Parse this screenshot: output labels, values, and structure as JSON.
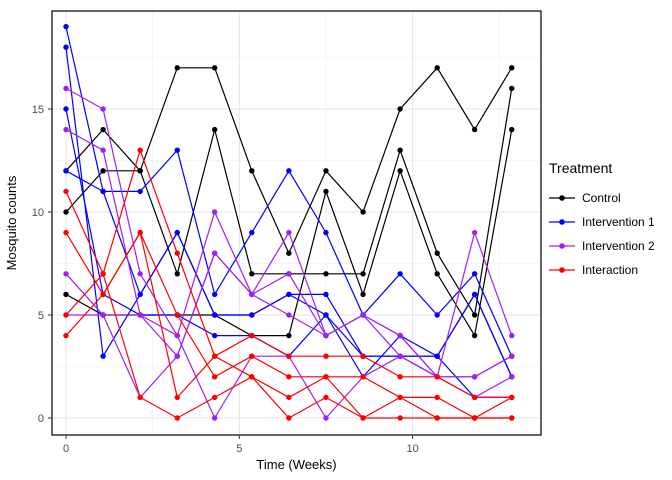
{
  "chart_data": {
    "type": "line",
    "title": "",
    "xlabel": "Time (Weeks)",
    "ylabel": "Mosquito counts",
    "x_ticks": [
      0,
      5,
      10
    ],
    "y_ticks": [
      0,
      5,
      10,
      15
    ],
    "x_minor": [
      2.5,
      7.5,
      12.5
    ],
    "y_minor": [
      2.5,
      7.5,
      12.5,
      17.5
    ],
    "xlim": [
      -0.41,
      13.71
    ],
    "ylim": [
      -0.83,
      19.76
    ],
    "grid": "on",
    "legend": {
      "title": "Treatment",
      "position": "right"
    },
    "time_weeks": [
      0,
      1.07,
      2.14,
      3.21,
      4.29,
      5.36,
      6.43,
      7.5,
      8.57,
      9.64,
      10.71,
      11.79,
      12.86
    ],
    "treatments": [
      {
        "name": "Control",
        "color": "#000000",
        "lines": [
          [
            10,
            12,
            12,
            17,
            17,
            12,
            8,
            12,
            10,
            15,
            17,
            14,
            17
          ],
          [
            12,
            14,
            12,
            7,
            14,
            7,
            7,
            7,
            7,
            13,
            8,
            5,
            16
          ],
          [
            6,
            5,
            5,
            5,
            5,
            4,
            4,
            11,
            6,
            12,
            7,
            4,
            14
          ]
        ]
      },
      {
        "name": "Intervention 1",
        "color": "#0000FF",
        "lines": [
          [
            19,
            11,
            11,
            13,
            6,
            9,
            12,
            9,
            5,
            7,
            5,
            7,
            3
          ],
          [
            18,
            3,
            6,
            9,
            5,
            5,
            6,
            6,
            3,
            3,
            3,
            6,
            2
          ],
          [
            15,
            6,
            5,
            5,
            4,
            4,
            3,
            5,
            2,
            4,
            3,
            1,
            1
          ],
          [
            12,
            11,
            6,
            9,
            5,
            5,
            6,
            5,
            3,
            3,
            3,
            6,
            2
          ]
        ]
      },
      {
        "name": "Intervention 2",
        "color": "#A020F0",
        "lines": [
          [
            16,
            15,
            7,
            4,
            10,
            6,
            9,
            4,
            5,
            3,
            2,
            9,
            4
          ],
          [
            14,
            13,
            5,
            3,
            8,
            6,
            7,
            4,
            5,
            4,
            2,
            2,
            3
          ],
          [
            7,
            5,
            5,
            4,
            0,
            3,
            3,
            0,
            2,
            3,
            2,
            1,
            2
          ],
          [
            5,
            5,
            1,
            3,
            8,
            6,
            5,
            4,
            5,
            4,
            2,
            2,
            3
          ]
        ]
      },
      {
        "name": "Interaction",
        "color": "#FF0000",
        "lines": [
          [
            11,
            7,
            13,
            8,
            3,
            4,
            3,
            3,
            3,
            2,
            2,
            1,
            1
          ],
          [
            9,
            6,
            9,
            5,
            2,
            3,
            2,
            2,
            0,
            1,
            1,
            0,
            0
          ],
          [
            5,
            7,
            1,
            0,
            1,
            2,
            0,
            1,
            0,
            0,
            0,
            0,
            0
          ],
          [
            4,
            6,
            9,
            1,
            3,
            2,
            1,
            2,
            2,
            1,
            0,
            0,
            1
          ]
        ]
      }
    ]
  }
}
